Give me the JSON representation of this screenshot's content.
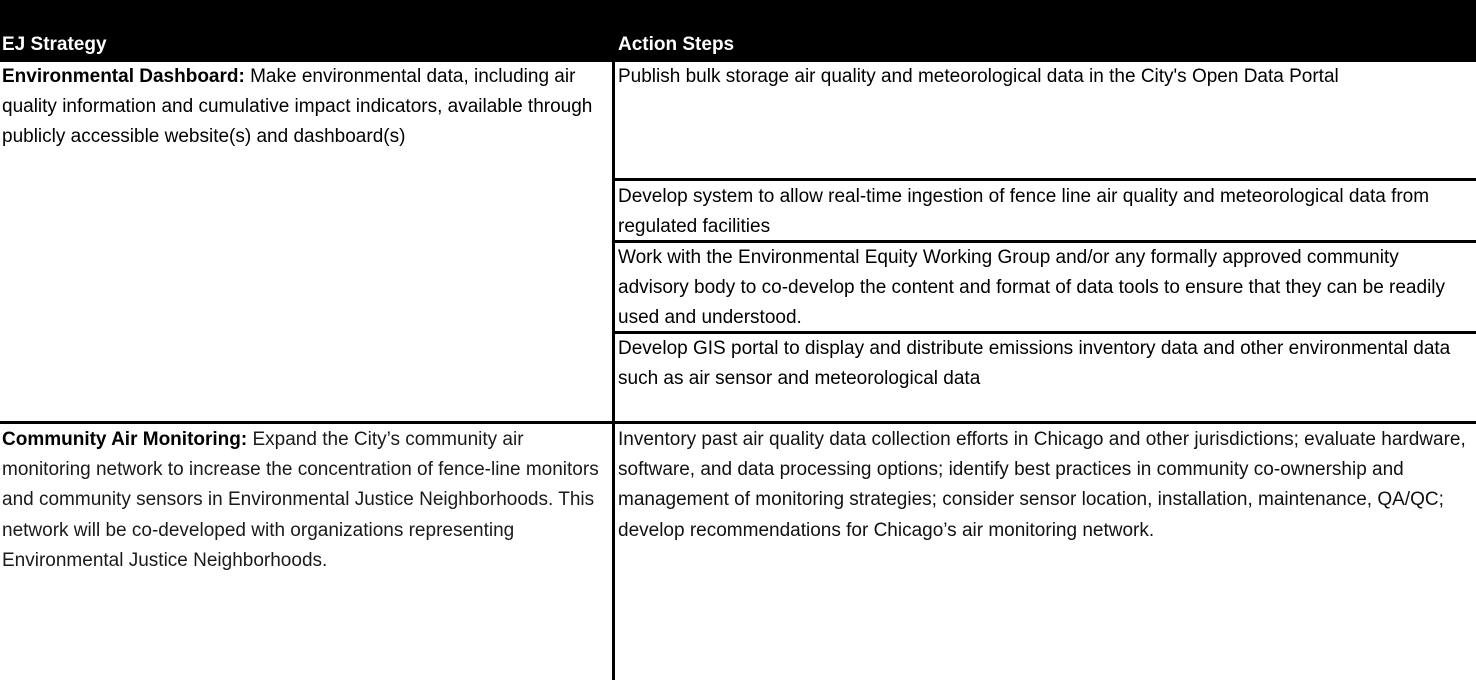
{
  "table": {
    "headers": {
      "strategy": "EJ Strategy",
      "actions": "Action Steps"
    },
    "rows": [
      {
        "strategy_title": "Environmental Dashboard:",
        "strategy_desc": " Make environmental data, including air quality information and cumulative impact indicators, available through publicly accessible website(s) and dashboard(s)",
        "steps": [
          "Publish bulk storage air quality and meteorological data in the City's Open Data Portal",
          "Develop system to allow real-time ingestion of fence line air quality and meteorological data from regulated facilities",
          "Work with the Environmental Equity Working Group and/or any formally approved community advisory body to co-develop the content and format of data tools to ensure that they can be readily used and understood.",
          "Develop GIS portal to display and distribute emissions inventory data and other environmental data such as air sensor and meteorological data"
        ]
      },
      {
        "strategy_title": "Community Air Monitoring:",
        "strategy_desc": " Expand the City’s community air monitoring network to increase the concentration of fence-line monitors and community sensors in Environmental Justice Neighborhoods. This network will be co-developed with organizations representing Environmental Justice Neighborhoods.",
        "steps": [
          "Inventory past air quality data collection efforts in Chicago and other jurisdictions; evaluate hardware, software, and data processing options; identify best practices in community co-ownership and management of monitoring strategies; consider sensor location, installation, maintenance, QA/QC; develop recommendations for Chicago’s air monitoring network."
        ]
      }
    ]
  }
}
